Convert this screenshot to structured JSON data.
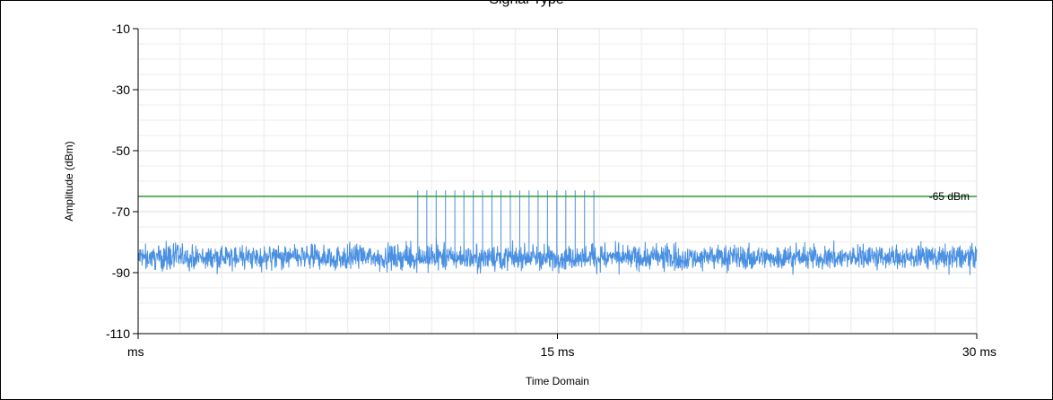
{
  "chart_data": {
    "type": "line",
    "title": "Signal Type",
    "xlabel": "Time Domain",
    "ylabel": "Amplitude (dBm)",
    "xlim": [
      0,
      30
    ],
    "ylim": [
      -110,
      -10
    ],
    "x_unit": "ms",
    "x_tick_labels": [
      "ms",
      "15 ms",
      "30 ms"
    ],
    "y_ticks": [
      -10,
      -30,
      -50,
      -70,
      -90,
      -110
    ],
    "grid": true,
    "colors": {
      "signal": "#4a90e2",
      "threshold": "#2e9b2e",
      "grid": "#dddddd"
    },
    "noise_floor": {
      "mean_dbm": -85,
      "peak_to_peak_db": 9
    },
    "bursts": {
      "count": 20,
      "start_ms": 10,
      "end_ms": 16.3,
      "peak_dbm": -63
    },
    "threshold": {
      "value": -65,
      "label": "-65 dBm"
    }
  }
}
